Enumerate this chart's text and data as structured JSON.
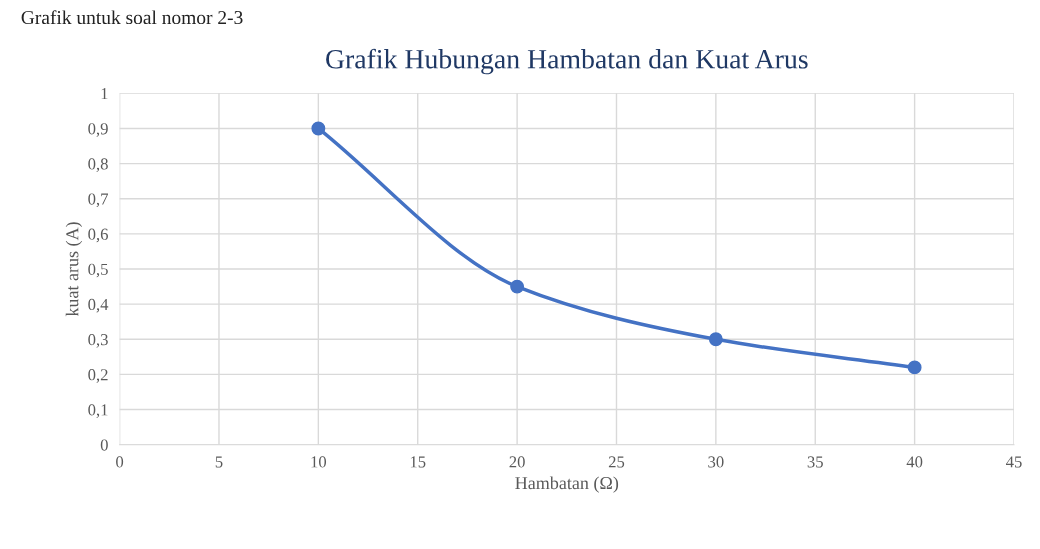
{
  "chart_data": {
    "type": "line",
    "title": "Grafik Hubungan Hambatan dan Kuat Arus",
    "xlabel": "Hambatan (Ω)",
    "ylabel": "kuat arus (A)",
    "annotations": [
      "Grafik untuk soal nomor 2-3"
    ],
    "series": [
      {
        "color": "#4472c4",
        "x": [
          10,
          20,
          30,
          40
        ],
        "values": [
          0.9,
          0.45,
          0.3,
          0.22
        ]
      }
    ],
    "xlim": [
      0,
      45
    ],
    "xticks": [
      0,
      5,
      10,
      15,
      20,
      25,
      30,
      35,
      40,
      45
    ],
    "ylim": [
      0,
      1
    ],
    "yticks": [
      {
        "value": 0,
        "label": "0"
      },
      {
        "value": 0.1,
        "label": "0,1"
      },
      {
        "value": 0.2,
        "label": "0,2"
      },
      {
        "value": 0.3,
        "label": "0,3"
      },
      {
        "value": 0.4,
        "label": "0,4"
      },
      {
        "value": 0.5,
        "label": "0,5"
      },
      {
        "value": 0.6,
        "label": "0,6"
      },
      {
        "value": 0.7,
        "label": "0,7"
      },
      {
        "value": 0.8,
        "label": "0,8"
      },
      {
        "value": 0.9,
        "label": "0,9"
      },
      {
        "value": 1,
        "label": "1"
      }
    ],
    "grid": true,
    "marker": "circle",
    "line_style": "solid",
    "legend": false
  }
}
